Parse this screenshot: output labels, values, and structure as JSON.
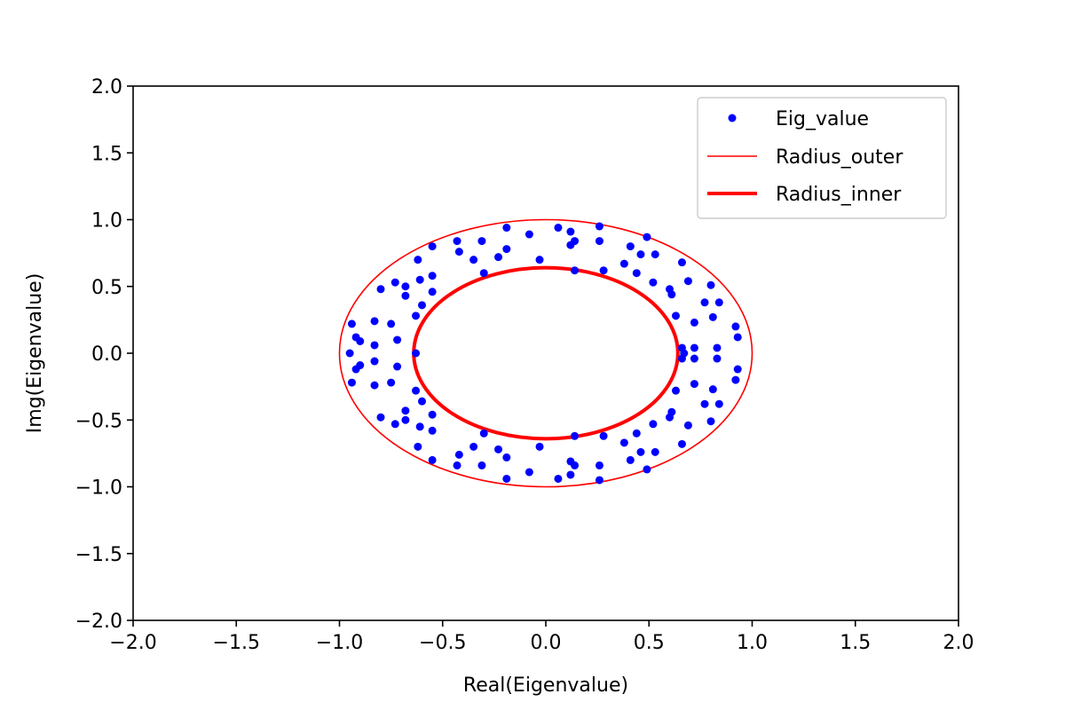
{
  "chart_data": {
    "type": "scatter",
    "title": "",
    "xlabel": "Real(Eigenvalue)",
    "ylabel": "Img(Eigenvalue)",
    "xlim": [
      -2.0,
      2.0
    ],
    "ylim": [
      -2.0,
      2.0
    ],
    "xticks": [
      "−2.0",
      "−1.5",
      "−1.0",
      "−0.5",
      "0.0",
      "0.5",
      "1.0",
      "1.5",
      "2.0"
    ],
    "yticks": [
      "−2.0",
      "−1.5",
      "−1.0",
      "−0.5",
      "0.0",
      "0.5",
      "1.0",
      "1.5",
      "2.0"
    ],
    "grid": false,
    "legend_position": "top-right",
    "series": [
      {
        "name": "Eig_value",
        "kind": "scatter",
        "color": "#0000ff",
        "points": [
          [
            -0.95,
            0.0
          ],
          [
            -0.94,
            0.22
          ],
          [
            -0.94,
            -0.22
          ],
          [
            -0.92,
            0.12
          ],
          [
            -0.92,
            -0.12
          ],
          [
            -0.9,
            0.09
          ],
          [
            -0.9,
            -0.09
          ],
          [
            -0.83,
            0.24
          ],
          [
            -0.83,
            -0.24
          ],
          [
            -0.83,
            0.06
          ],
          [
            -0.83,
            -0.06
          ],
          [
            -0.8,
            0.48
          ],
          [
            -0.8,
            -0.48
          ],
          [
            -0.75,
            0.22
          ],
          [
            -0.75,
            -0.22
          ],
          [
            -0.73,
            0.53
          ],
          [
            -0.73,
            -0.53
          ],
          [
            -0.72,
            0.1
          ],
          [
            -0.72,
            -0.1
          ],
          [
            -0.68,
            0.43
          ],
          [
            -0.68,
            -0.43
          ],
          [
            -0.68,
            0.5
          ],
          [
            -0.68,
            -0.5
          ],
          [
            -0.63,
            0.0
          ],
          [
            -0.63,
            0.28
          ],
          [
            -0.63,
            -0.28
          ],
          [
            -0.62,
            0.7
          ],
          [
            -0.62,
            -0.7
          ],
          [
            -0.61,
            0.55
          ],
          [
            -0.61,
            -0.55
          ],
          [
            -0.6,
            0.36
          ],
          [
            -0.6,
            -0.36
          ],
          [
            -0.55,
            0.8
          ],
          [
            -0.55,
            -0.8
          ],
          [
            -0.55,
            0.58
          ],
          [
            -0.55,
            -0.58
          ],
          [
            -0.55,
            0.46
          ],
          [
            -0.55,
            -0.46
          ],
          [
            -0.43,
            0.84
          ],
          [
            -0.43,
            -0.84
          ],
          [
            -0.42,
            0.76
          ],
          [
            -0.42,
            -0.76
          ],
          [
            -0.35,
            0.7
          ],
          [
            -0.35,
            -0.7
          ],
          [
            -0.31,
            0.84
          ],
          [
            -0.31,
            -0.84
          ],
          [
            -0.3,
            0.6
          ],
          [
            -0.3,
            -0.6
          ],
          [
            -0.23,
            0.72
          ],
          [
            -0.23,
            -0.72
          ],
          [
            -0.19,
            0.94
          ],
          [
            -0.19,
            -0.94
          ],
          [
            -0.19,
            0.78
          ],
          [
            -0.19,
            -0.78
          ],
          [
            -0.08,
            0.89
          ],
          [
            -0.08,
            -0.89
          ],
          [
            -0.03,
            0.7
          ],
          [
            -0.03,
            -0.7
          ],
          [
            0.06,
            0.94
          ],
          [
            0.06,
            -0.94
          ],
          [
            0.12,
            0.91
          ],
          [
            0.12,
            -0.91
          ],
          [
            0.12,
            0.81
          ],
          [
            0.12,
            -0.81
          ],
          [
            0.14,
            0.84
          ],
          [
            0.14,
            -0.84
          ],
          [
            0.14,
            0.62
          ],
          [
            0.14,
            -0.62
          ],
          [
            0.26,
            0.95
          ],
          [
            0.26,
            -0.95
          ],
          [
            0.26,
            0.84
          ],
          [
            0.26,
            -0.84
          ],
          [
            0.28,
            0.62
          ],
          [
            0.28,
            -0.62
          ],
          [
            0.38,
            0.67
          ],
          [
            0.38,
            -0.67
          ],
          [
            0.41,
            0.8
          ],
          [
            0.41,
            -0.8
          ],
          [
            0.44,
            0.6
          ],
          [
            0.44,
            -0.6
          ],
          [
            0.46,
            0.74
          ],
          [
            0.46,
            -0.74
          ],
          [
            0.49,
            0.87
          ],
          [
            0.49,
            -0.87
          ],
          [
            0.52,
            0.53
          ],
          [
            0.52,
            -0.53
          ],
          [
            0.53,
            0.74
          ],
          [
            0.53,
            -0.74
          ],
          [
            0.6,
            0.48
          ],
          [
            0.6,
            -0.48
          ],
          [
            0.61,
            0.44
          ],
          [
            0.61,
            -0.44
          ],
          [
            0.63,
            0.28
          ],
          [
            0.63,
            -0.28
          ],
          [
            0.66,
            0.68
          ],
          [
            0.66,
            -0.68
          ],
          [
            0.66,
            0.04
          ],
          [
            0.66,
            -0.04
          ],
          [
            0.67,
            0.0
          ],
          [
            0.69,
            0.54
          ],
          [
            0.69,
            -0.54
          ],
          [
            0.72,
            0.23
          ],
          [
            0.72,
            -0.23
          ],
          [
            0.72,
            0.04
          ],
          [
            0.72,
            -0.04
          ],
          [
            0.77,
            0.38
          ],
          [
            0.77,
            -0.38
          ],
          [
            0.8,
            0.51
          ],
          [
            0.8,
            -0.51
          ],
          [
            0.81,
            0.27
          ],
          [
            0.81,
            -0.27
          ],
          [
            0.83,
            0.04
          ],
          [
            0.83,
            -0.04
          ],
          [
            0.84,
            0.38
          ],
          [
            0.84,
            -0.38
          ],
          [
            0.92,
            0.2
          ],
          [
            0.92,
            -0.2
          ],
          [
            0.93,
            0.12
          ],
          [
            0.93,
            -0.12
          ]
        ]
      },
      {
        "name": "Radius_outer",
        "kind": "circle",
        "radius": 1.0,
        "color": "#ff0000"
      },
      {
        "name": "Radius_inner",
        "kind": "circle",
        "radius": 0.64,
        "color": "#ff0000"
      }
    ]
  }
}
